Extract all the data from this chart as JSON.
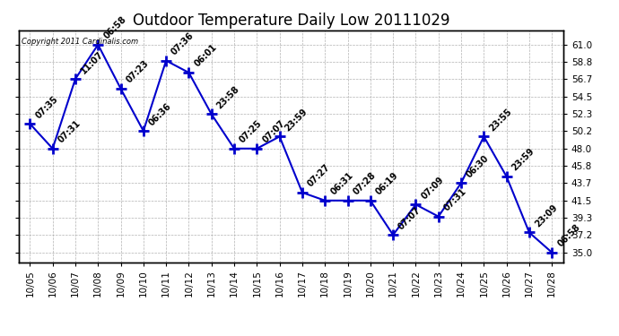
{
  "title": "Outdoor Temperature Daily Low 20111029",
  "copyright_text": "Copyright 2011 Cardinalis.com",
  "line_color": "#0000cc",
  "marker_color": "#0000cc",
  "background_color": "#ffffff",
  "plot_background": "#ffffff",
  "grid_color": "#aaaaaa",
  "dates": [
    "10/05",
    "10/06",
    "10/07",
    "10/08",
    "10/09",
    "10/10",
    "10/11",
    "10/12",
    "10/13",
    "10/14",
    "10/15",
    "10/16",
    "10/17",
    "10/18",
    "10/19",
    "10/20",
    "10/21",
    "10/22",
    "10/23",
    "10/24",
    "10/25",
    "10/26",
    "10/27",
    "10/28"
  ],
  "values": [
    51.1,
    48.0,
    56.7,
    61.0,
    55.5,
    50.2,
    59.0,
    57.5,
    52.3,
    48.0,
    48.0,
    49.5,
    42.5,
    41.5,
    41.5,
    41.5,
    37.2,
    41.0,
    39.5,
    43.7,
    49.5,
    44.5,
    37.5,
    35.0
  ],
  "time_labels": [
    "07:35",
    "07:31",
    "11:07",
    "06:58",
    "07:23",
    "06:36",
    "07:36",
    "06:01",
    "23:58",
    "07:25",
    "07:07",
    "23:59",
    "07:27",
    "06:31",
    "07:28",
    "06:19",
    "07:07",
    "07:09",
    "07:31",
    "06:30",
    "23:55",
    "23:59",
    "23:09",
    "06:58"
  ],
  "yticks": [
    35.0,
    37.2,
    39.3,
    41.5,
    43.7,
    45.8,
    48.0,
    50.2,
    52.3,
    54.5,
    56.7,
    58.8,
    61.0
  ],
  "ylim": [
    33.8,
    62.8
  ],
  "title_fontsize": 12,
  "label_fontsize": 7,
  "tick_fontsize": 7.5,
  "copyright_fontsize": 6
}
